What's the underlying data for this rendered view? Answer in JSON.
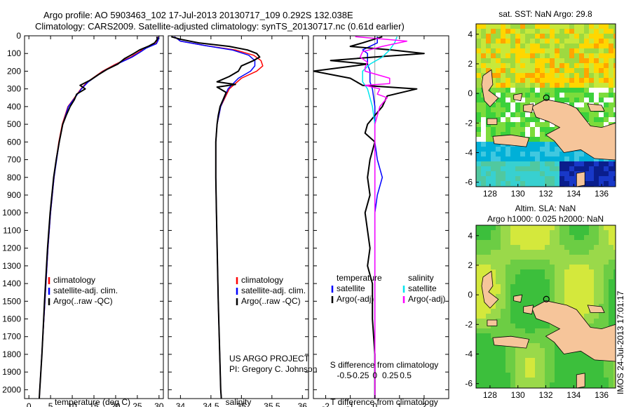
{
  "header": {
    "line1": "Argo profile: AO 5903463_102 17-Jul-2013 20130717_109 0.292S 132.038E",
    "line2": "Climatology: CARS2009. Satellite-adjusted climatology: synTS_20130717.nc (0.61d earlier)"
  },
  "colors": {
    "climatology": "#ff0000",
    "satellite": "#0000ff",
    "argo": "#000000",
    "satellite_salinity": "#00e5ee",
    "argo_salinity": "#ff00ff",
    "land": "#f6c59a"
  },
  "chart_data": [
    {
      "type": "line",
      "name": "temperature-profile",
      "xlabel": "temperature (deg C)",
      "ylabel": "",
      "xlim": [
        -1,
        31
      ],
      "ylim": [
        2050,
        0
      ],
      "xticks": [
        0,
        5,
        10,
        15,
        20,
        25,
        30
      ],
      "yticks": [
        0,
        100,
        200,
        300,
        400,
        500,
        600,
        700,
        800,
        900,
        1000,
        1100,
        1200,
        1300,
        1400,
        1500,
        1600,
        1700,
        1800,
        1900,
        2000
      ],
      "legend": {
        "placement": "center-left",
        "entries": [
          "climatology",
          "satellite-adj. clim.",
          "Argo(..raw -QC)"
        ]
      },
      "series": [
        {
          "name": "climatology",
          "depth": [
            5,
            25,
            45,
            70,
            90,
            120,
            160,
            200,
            260,
            300,
            350,
            400,
            500,
            600,
            700,
            800,
            1000,
            1200,
            1500,
            2000,
            2050
          ],
          "values": [
            29.8,
            29.7,
            29.3,
            26.5,
            25.5,
            23.5,
            20.0,
            17.0,
            13.5,
            12.0,
            10.5,
            9.0,
            7.7,
            6.9,
            6.3,
            5.8,
            5.0,
            4.4,
            3.7,
            2.5,
            2.4
          ]
        },
        {
          "name": "satellite-adj. clim.",
          "depth": [
            5,
            25,
            45,
            70,
            90,
            120,
            160,
            200,
            260,
            300,
            350,
            400,
            500,
            600,
            700,
            800,
            1000,
            1200,
            1500,
            2000,
            2050
          ],
          "values": [
            29.9,
            29.8,
            29.4,
            27.0,
            25.8,
            23.8,
            20.3,
            17.2,
            13.7,
            12.1,
            10.6,
            9.1,
            7.8,
            7.0,
            6.4,
            5.8,
            5.0,
            4.4,
            3.7,
            2.5,
            2.4
          ]
        },
        {
          "name": "Argo(..raw -QC)",
          "depth": [
            5,
            20,
            40,
            60,
            80,
            100,
            130,
            160,
            190,
            220,
            250,
            280,
            300,
            330,
            360,
            400,
            450,
            500,
            550,
            600,
            700,
            800,
            900,
            1000,
            1200,
            1500,
            1800,
            2000,
            2050
          ],
          "values": [
            29.5,
            29.6,
            29.0,
            27.5,
            25.5,
            24.2,
            22.0,
            20.5,
            18.0,
            16.0,
            14.2,
            11.8,
            13.0,
            11.0,
            10.5,
            9.5,
            8.6,
            7.8,
            7.4,
            7.0,
            6.3,
            5.7,
            5.3,
            4.9,
            4.3,
            3.6,
            3.0,
            2.5,
            2.4
          ]
        }
      ]
    },
    {
      "type": "line",
      "name": "salinity-profile",
      "xlabel": "salinity",
      "ylabel": "",
      "xlim": [
        33.8,
        36.1
      ],
      "ylim": [
        2050,
        0
      ],
      "xticks": [
        34,
        34.5,
        35,
        35.5,
        36
      ],
      "legend": {
        "placement": "center-right",
        "entries": [
          "climatology",
          "satellite-adj. clim.",
          "Argo(..raw -QC)"
        ]
      },
      "annotation": [
        "US ARGO PROJECT",
        "PI: Gregory C. Johnson"
      ],
      "series": [
        {
          "name": "climatology",
          "depth": [
            5,
            30,
            55,
            80,
            110,
            140,
            170,
            200,
            240,
            300,
            400,
            500,
            600,
            800,
            1000,
            1500,
            2000,
            2050
          ],
          "values": [
            33.9,
            34.0,
            34.4,
            34.9,
            35.2,
            35.32,
            35.35,
            35.25,
            35.0,
            34.8,
            34.66,
            34.6,
            34.58,
            34.58,
            34.59,
            34.62,
            34.66,
            34.67
          ]
        },
        {
          "name": "satellite-adj. clim.",
          "depth": [
            5,
            30,
            55,
            80,
            110,
            140,
            170,
            200,
            240,
            300,
            400,
            500,
            600,
            800,
            1000,
            1500,
            2000,
            2050
          ],
          "values": [
            33.9,
            34.0,
            34.4,
            34.85,
            35.12,
            35.22,
            35.22,
            35.15,
            34.95,
            34.78,
            34.66,
            34.6,
            34.58,
            34.58,
            34.59,
            34.62,
            34.66,
            34.67
          ]
        },
        {
          "name": "Argo(..raw -QC)",
          "depth": [
            5,
            20,
            40,
            60,
            80,
            100,
            120,
            140,
            170,
            200,
            230,
            260,
            275,
            290,
            320,
            360,
            400,
            450,
            500,
            600,
            800,
            1000,
            1500,
            2000,
            2050
          ],
          "values": [
            33.85,
            34.0,
            34.3,
            34.8,
            35.1,
            35.25,
            35.3,
            35.2,
            35.0,
            34.95,
            34.8,
            34.6,
            34.9,
            34.6,
            34.75,
            34.7,
            34.65,
            34.62,
            34.6,
            34.58,
            34.58,
            34.59,
            34.62,
            34.66,
            34.67
          ]
        }
      ]
    },
    {
      "type": "line",
      "name": "difference-profile",
      "xlabel": "T difference from climatology",
      "ylabel": "",
      "xlim": [
        -2.5,
        3
      ],
      "ylim": [
        2050,
        0
      ],
      "xticks": [
        -2,
        -1,
        0,
        1,
        2
      ],
      "secondary_xlabel": "S difference from climatology",
      "secondary_xticks": [
        "-0.5",
        "-0.25",
        "0",
        "0.25",
        "0.5"
      ],
      "legend": {
        "placement": "center",
        "groups": [
          {
            "title": "temperature",
            "entries": [
              "satellite",
              "Argo(-adj)"
            ]
          },
          {
            "title": "salinity",
            "entries": [
              "satellite",
              "Argo(-adj)"
            ]
          }
        ]
      },
      "series": [
        {
          "name": "satellite",
          "depth": [
            5,
            40,
            60,
            80,
            100,
            120,
            160,
            200,
            260,
            300,
            400,
            500,
            600,
            700,
            800,
            900,
            1000,
            1500,
            2050
          ],
          "values": [
            0.1,
            0.1,
            -0.2,
            -0.5,
            -0.3,
            -0.3,
            -0.3,
            -0.2,
            -0.2,
            -0.1,
            0,
            0,
            0,
            0.1,
            0.3,
            0.1,
            0,
            0,
            0
          ]
        },
        {
          "name": "Argo(-adj)",
          "depth": [
            5,
            40,
            60,
            80,
            100,
            120,
            140,
            160,
            200,
            240,
            280,
            300,
            340,
            400,
            450,
            500,
            550,
            600,
            700,
            800,
            900,
            1000,
            1100,
            1200,
            1300,
            1400,
            1500,
            1600,
            1800,
            2000,
            2050
          ],
          "values": [
            0.3,
            -0.5,
            -1.0,
            0.7,
            2.0,
            0.0,
            -1.8,
            -0.3,
            -2.5,
            -1.0,
            -0.5,
            1.7,
            0.5,
            0.3,
            0.0,
            -0.3,
            -0.4,
            0.0,
            -0.2,
            -0.3,
            -0.2,
            -0.4,
            -0.3,
            -0.2,
            -0.3,
            -0.1,
            -0.1,
            -0.1,
            0,
            0,
            0
          ]
        },
        {
          "name": "satellite",
          "depth": [
            5,
            40,
            80,
            120,
            160,
            200,
            260,
            300,
            400,
            500,
            600,
            800,
            1000,
            1500,
            2050
          ],
          "values": [
            0.9,
            0.8,
            0.6,
            0.3,
            -0.2,
            -0.5,
            -0.5,
            -0.3,
            -0.1,
            0,
            0,
            0,
            0,
            0,
            0
          ]
        },
        {
          "name": "Argo(-adj)",
          "depth": [
            5,
            30,
            60,
            90,
            120,
            150,
            180,
            200,
            240,
            270,
            280,
            300,
            330,
            350,
            400,
            450,
            500,
            600,
            800,
            1000,
            2050
          ],
          "values": [
            -0.8,
            1.3,
            0.3,
            -0.5,
            -0.6,
            -0.3,
            -0.4,
            -0.4,
            0.6,
            0.6,
            -0.4,
            0.2,
            0.1,
            0.5,
            0.2,
            0.1,
            0.0,
            0.0,
            0.0,
            0.0,
            0.0
          ]
        }
      ]
    },
    {
      "type": "heatmap",
      "name": "sst-map",
      "title": "sat. SST: NaN Argo: 29.8",
      "xlim": [
        127,
        137
      ],
      "ylim": [
        -6.3,
        4.7
      ],
      "xticks": [
        128,
        130,
        132,
        134,
        136
      ],
      "yticks": [
        4,
        2,
        0,
        -2,
        -4,
        -6
      ],
      "marker": {
        "lon": 132.038,
        "lat": -0.292
      }
    },
    {
      "type": "heatmap",
      "name": "sla-map",
      "title": "Altim. SLA: NaN",
      "subtitle": "Argo h1000: 0.025 h2000: NaN",
      "xlim": [
        127,
        137
      ],
      "ylim": [
        -6.3,
        4.7
      ],
      "xticks": [
        128,
        130,
        132,
        134,
        136
      ],
      "yticks": [
        4,
        2,
        0,
        -2,
        -4,
        -6
      ],
      "marker": {
        "lon": 132.038,
        "lat": -0.292
      }
    }
  ],
  "footer": {
    "stamp": "IMOS 24-Jul-2013 17:01:17"
  }
}
